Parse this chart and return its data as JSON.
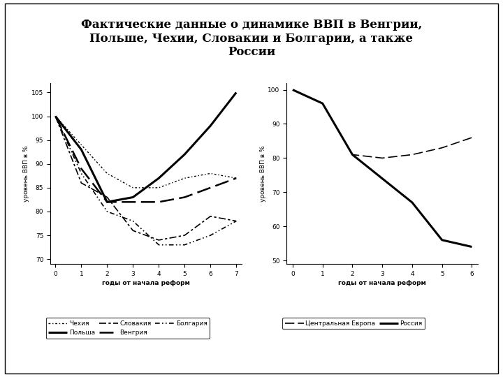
{
  "title": "Фактические данные о динамике ВВП в Венгрии,\nПольше, Чехии, Словакии и Болгарии, а также\nРоссии",
  "left_chart": {
    "xlabel": "годы от начала реформ",
    "ylabel": "уровень ВВП в %",
    "xlim": [
      -0.2,
      7.2
    ],
    "ylim": [
      69,
      107
    ],
    "yticks": [
      70,
      75,
      80,
      85,
      90,
      95,
      100,
      105
    ],
    "xticks": [
      0,
      1,
      2,
      3,
      4,
      5,
      6,
      7
    ],
    "series": {
      "Чехия": {
        "x": [
          0,
          1,
          2,
          3,
          4,
          5,
          6,
          7
        ],
        "y": [
          100,
          94,
          88,
          85,
          85,
          87,
          88,
          87
        ],
        "lw": 1.0,
        "style": "dashed_dot_fine"
      },
      "Польша": {
        "x": [
          0,
          1,
          2,
          3,
          4,
          5,
          6,
          7
        ],
        "y": [
          100,
          93,
          82,
          83,
          87,
          92,
          98,
          105
        ],
        "lw": 2.2,
        "style": "solid"
      },
      "Словакия": {
        "x": [
          0,
          1,
          2,
          3,
          4,
          5,
          6,
          7
        ],
        "y": [
          100,
          86,
          83,
          76,
          74,
          75,
          79,
          78
        ],
        "lw": 1.2,
        "style": "dash_dot"
      },
      "Венгрия": {
        "x": [
          0,
          1,
          2,
          3,
          4,
          5,
          6,
          7
        ],
        "y": [
          100,
          89,
          82,
          82,
          82,
          83,
          85,
          87
        ],
        "lw": 1.8,
        "style": "dashed_long"
      },
      "Болгария": {
        "x": [
          0,
          1,
          2,
          3,
          4,
          5,
          6,
          7
        ],
        "y": [
          100,
          88,
          80,
          78,
          73,
          73,
          75,
          78
        ],
        "lw": 1.2,
        "style": "dash_dot_dot"
      }
    },
    "legend_order": [
      "Чехия",
      "Польша",
      "Словакия",
      "Венгрия",
      "Болгария"
    ]
  },
  "right_chart": {
    "xlabel": "годы от начала реформ",
    "ylabel": "уровень ВВП в %",
    "xlim": [
      -0.2,
      6.2
    ],
    "ylim": [
      49,
      102
    ],
    "yticks": [
      50,
      60,
      70,
      80,
      90,
      100
    ],
    "xticks": [
      0,
      1,
      2,
      3,
      4,
      5,
      6
    ],
    "series": {
      "Центральная Европа": {
        "x": [
          0,
          1,
          2,
          3,
          4,
          5,
          6
        ],
        "y": [
          100,
          96,
          81,
          80,
          81,
          83,
          86
        ],
        "lw": 1.2,
        "style": "dashed_long"
      },
      "Россия": {
        "x": [
          0,
          1,
          2,
          3,
          4,
          5,
          6
        ],
        "y": [
          100,
          96,
          81,
          74,
          67,
          56,
          54
        ],
        "lw": 2.2,
        "style": "solid"
      }
    },
    "legend_order": [
      "Центральная Европа",
      "Россия"
    ]
  },
  "background_color": "#ffffff",
  "title_fontsize": 12,
  "axis_label_fontsize": 6.5,
  "tick_fontsize": 6.5,
  "legend_fontsize": 6.5
}
